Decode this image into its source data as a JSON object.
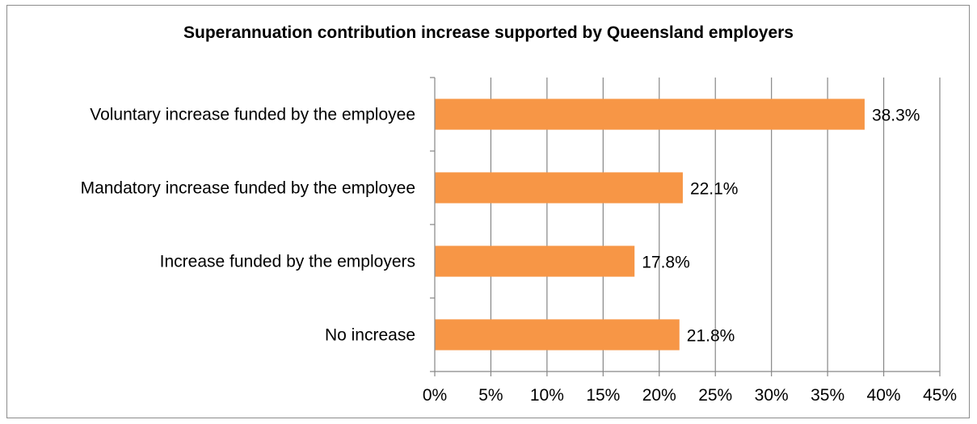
{
  "chart_data": {
    "type": "bar",
    "orientation": "horizontal",
    "title": "Superannuation contribution increase supported by Queensland employers",
    "categories": [
      "Voluntary increase funded by the employee",
      "Mandatory increase funded by the employee",
      "Increase funded by the employers",
      "No increase"
    ],
    "values": [
      38.3,
      22.1,
      17.8,
      21.8
    ],
    "data_labels": [
      "38.3%",
      "22.1%",
      "17.8%",
      "21.8%"
    ],
    "xlim": [
      0,
      45
    ],
    "xticks": [
      0,
      5,
      10,
      15,
      20,
      25,
      30,
      35,
      40,
      45
    ],
    "xtick_labels": [
      "0%",
      "5%",
      "10%",
      "15%",
      "20%",
      "25%",
      "30%",
      "35%",
      "40%",
      "45%"
    ],
    "xlabel": "",
    "ylabel": "",
    "grid": "vertical",
    "legend": "none",
    "bar_color": "#F79646",
    "gridline_color": "#868686"
  }
}
